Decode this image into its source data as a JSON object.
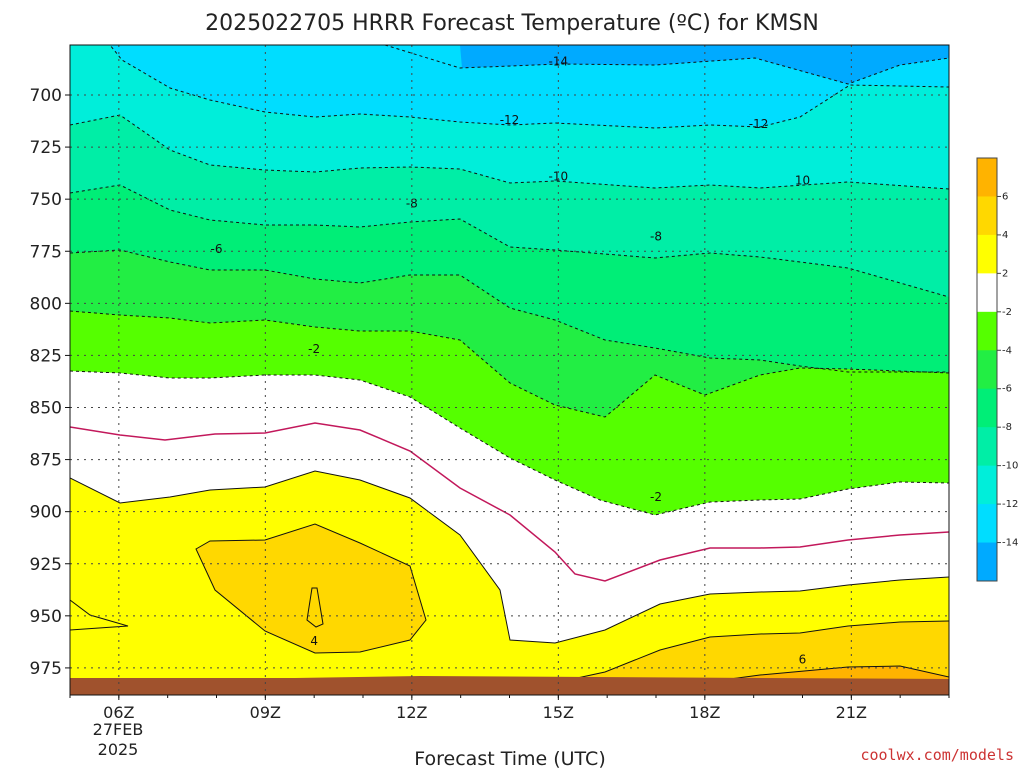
{
  "chart_data": {
    "type": "contour",
    "title": "2025022705 HRRR Forecast Temperature (ºC) for KMSN",
    "xlabel": "Forecast Time (UTC)",
    "x_ticks": [
      "06Z",
      "09Z",
      "12Z",
      "15Z",
      "18Z",
      "21Z"
    ],
    "x_tick_date": [
      "27FEB",
      "2025"
    ],
    "y_ticks": [
      700,
      725,
      750,
      775,
      800,
      825,
      850,
      875,
      900,
      925,
      950,
      975
    ],
    "y_range_hPa": [
      988,
      676
    ],
    "y_scale": "pressure",
    "forecast_hours_utc": [
      5,
      6,
      7,
      8,
      9,
      10,
      11,
      12,
      13,
      14,
      15,
      16,
      17,
      18,
      19,
      20,
      21,
      22,
      23
    ],
    "grid": true,
    "colorbar": {
      "labels": [
        "6",
        "4",
        "2",
        "-2",
        "-4",
        "-6",
        "-8",
        "-10",
        "-12",
        "-14"
      ],
      "colors": [
        "#ffb300",
        "#ffd800",
        "#ffff00",
        "#ffffff",
        "#55ff00",
        "#22ee44",
        "#00ee77",
        "#00eea6",
        "#00eeda",
        "#00ddff",
        "#00aaff"
      ]
    },
    "contour_labels": [
      {
        "text": "-14",
        "time": 15.0,
        "p": 684
      },
      {
        "text": "-12",
        "time": 14.0,
        "p": 712
      },
      {
        "text": "-12",
        "time": 19.1,
        "p": 714
      },
      {
        "text": "-10",
        "time": 15.0,
        "p": 739
      },
      {
        "text": "10",
        "time": 20.0,
        "p": 741
      },
      {
        "text": "-8",
        "time": 12.0,
        "p": 752
      },
      {
        "text": "-8",
        "time": 17.0,
        "p": 768
      },
      {
        "text": "-6",
        "time": 8.0,
        "p": 774
      },
      {
        "text": "-2",
        "time": 10.0,
        "p": 822
      },
      {
        "text": "-2",
        "time": 17.0,
        "p": 893
      },
      {
        "text": "4",
        "time": 10.0,
        "p": 962
      },
      {
        "text": "6",
        "time": 20.0,
        "p": 971
      }
    ],
    "surface_color": "#a0522d"
  },
  "credit": "coolwx.com/models"
}
